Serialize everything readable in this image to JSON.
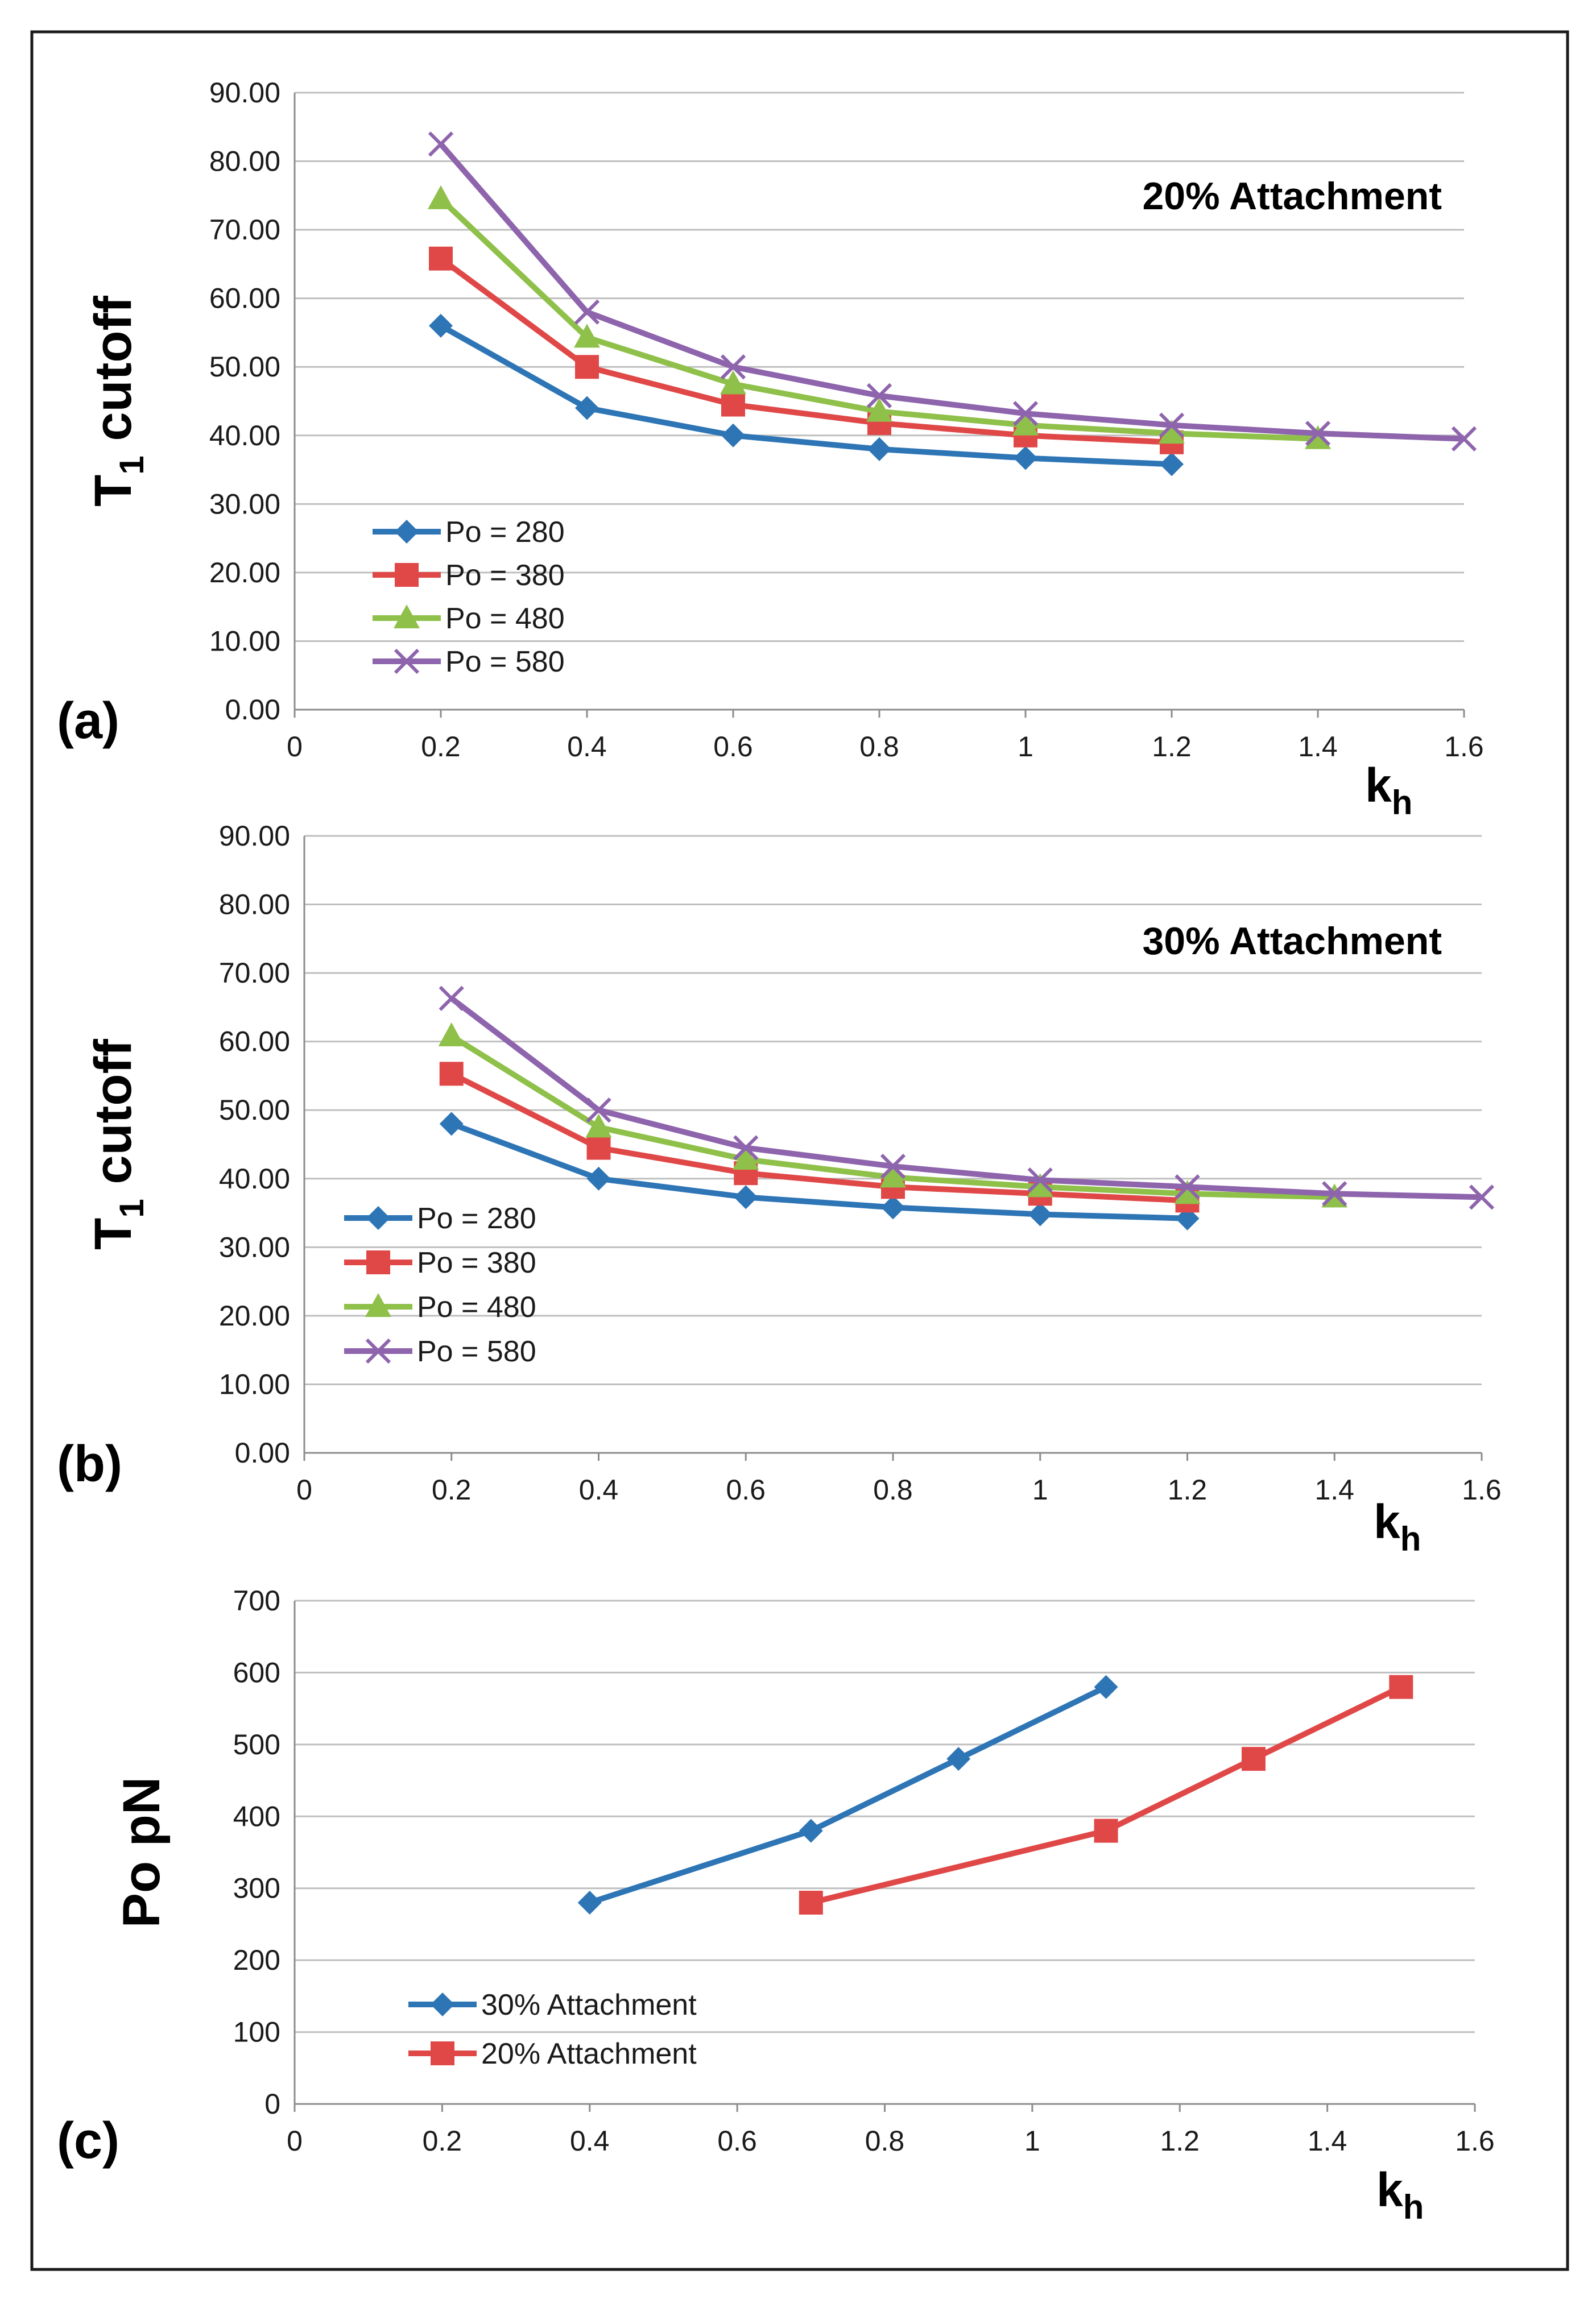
{
  "chart_data": [
    {
      "panel_label": "(a)",
      "type": "line",
      "ylabel": "T",
      "ylabel_sub": "1",
      "ylabel_suffix": " cutoff",
      "xlabel": "k",
      "xlabel_sub": "h",
      "annotation": "20% Attachment",
      "xlim": [
        0,
        1.6
      ],
      "ylim": [
        0,
        90
      ],
      "xticks": [
        "0",
        "0.2",
        "0.4",
        "0.6",
        "0.8",
        "1",
        "1.2",
        "1.4",
        "1.6"
      ],
      "yticks": [
        "0.00",
        "10.00",
        "20.00",
        "30.00",
        "40.00",
        "50.00",
        "60.00",
        "70.00",
        "80.00",
        "90.00"
      ],
      "grid": true,
      "legend_position": "lower-left",
      "series": [
        {
          "name": "Po = 280",
          "color": "#2e75b6",
          "marker": "diamond",
          "x": [
            0.2,
            0.4,
            0.6,
            0.8,
            1.0,
            1.2
          ],
          "y": [
            56.0,
            44.0,
            40.0,
            38.0,
            36.7,
            35.8
          ]
        },
        {
          "name": "Po = 380",
          "color": "#e04848",
          "marker": "square",
          "x": [
            0.2,
            0.4,
            0.6,
            0.8,
            1.0,
            1.2
          ],
          "y": [
            65.8,
            50.0,
            44.5,
            41.8,
            40.0,
            39.0
          ]
        },
        {
          "name": "Po = 480",
          "color": "#8fc04a",
          "marker": "triangle",
          "x": [
            0.2,
            0.4,
            0.6,
            0.8,
            1.0,
            1.2,
            1.4
          ],
          "y": [
            74.5,
            54.3,
            47.5,
            43.5,
            41.5,
            40.3,
            39.5
          ]
        },
        {
          "name": "Po = 580",
          "color": "#8e64ad",
          "marker": "x",
          "x": [
            0.2,
            0.4,
            0.6,
            0.8,
            1.0,
            1.2,
            1.4,
            1.6
          ],
          "y": [
            82.5,
            58.0,
            50.0,
            45.8,
            43.2,
            41.5,
            40.3,
            39.5
          ]
        }
      ]
    },
    {
      "panel_label": "(b)",
      "type": "line",
      "ylabel": "T",
      "ylabel_sub": "1",
      "ylabel_suffix": " cutoff",
      "xlabel": "k",
      "xlabel_sub": "h",
      "annotation": "30% Attachment",
      "xlim": [
        0,
        1.6
      ],
      "ylim": [
        0,
        90
      ],
      "xticks": [
        "0",
        "0.2",
        "0.4",
        "0.6",
        "0.8",
        "1",
        "1.2",
        "1.4",
        "1.6"
      ],
      "yticks": [
        "0.00",
        "10.00",
        "20.00",
        "30.00",
        "40.00",
        "50.00",
        "60.00",
        "70.00",
        "80.00",
        "90.00"
      ],
      "grid": true,
      "legend_position": "lower-left",
      "series": [
        {
          "name": "Po = 280",
          "color": "#2e75b6",
          "marker": "diamond",
          "x": [
            0.2,
            0.4,
            0.6,
            0.8,
            1.0,
            1.2
          ],
          "y": [
            48.0,
            40.0,
            37.3,
            35.8,
            34.8,
            34.2
          ]
        },
        {
          "name": "Po = 380",
          "color": "#e04848",
          "marker": "square",
          "x": [
            0.2,
            0.4,
            0.6,
            0.8,
            1.0,
            1.2
          ],
          "y": [
            55.3,
            44.5,
            40.8,
            38.8,
            37.8,
            36.8
          ]
        },
        {
          "name": "Po = 480",
          "color": "#8fc04a",
          "marker": "triangle",
          "x": [
            0.2,
            0.4,
            0.6,
            0.8,
            1.0,
            1.2,
            1.4
          ],
          "y": [
            60.8,
            47.5,
            42.8,
            40.2,
            38.8,
            37.8,
            37.3
          ]
        },
        {
          "name": "Po = 580",
          "color": "#8e64ad",
          "marker": "x",
          "x": [
            0.2,
            0.4,
            0.6,
            0.8,
            1.0,
            1.2,
            1.4,
            1.6
          ],
          "y": [
            66.3,
            50.0,
            44.5,
            41.8,
            39.8,
            38.8,
            37.8,
            37.3
          ]
        }
      ]
    },
    {
      "panel_label": "(c)",
      "type": "line",
      "ylabel": "Po pN",
      "ylabel_sub": "",
      "ylabel_suffix": "",
      "xlabel": "k",
      "xlabel_sub": "h",
      "annotation": "",
      "xlim": [
        0,
        1.6
      ],
      "ylim": [
        0,
        700
      ],
      "xticks": [
        "0",
        "0.2",
        "0.4",
        "0.6",
        "0.8",
        "1",
        "1.2",
        "1.4",
        "1.6"
      ],
      "yticks": [
        "0",
        "100",
        "200",
        "300",
        "400",
        "500",
        "600",
        "700"
      ],
      "grid": true,
      "legend_position": "lower-left",
      "series": [
        {
          "name": "30% Attachment",
          "color": "#2e75b6",
          "marker": "diamond",
          "x": [
            0.4,
            0.7,
            0.9,
            1.1
          ],
          "y": [
            280,
            380,
            480,
            580
          ]
        },
        {
          "name": "20% Attachment",
          "color": "#e04848",
          "marker": "square",
          "x": [
            0.7,
            1.1,
            1.3,
            1.5
          ],
          "y": [
            280,
            380,
            480,
            580
          ]
        }
      ]
    }
  ]
}
